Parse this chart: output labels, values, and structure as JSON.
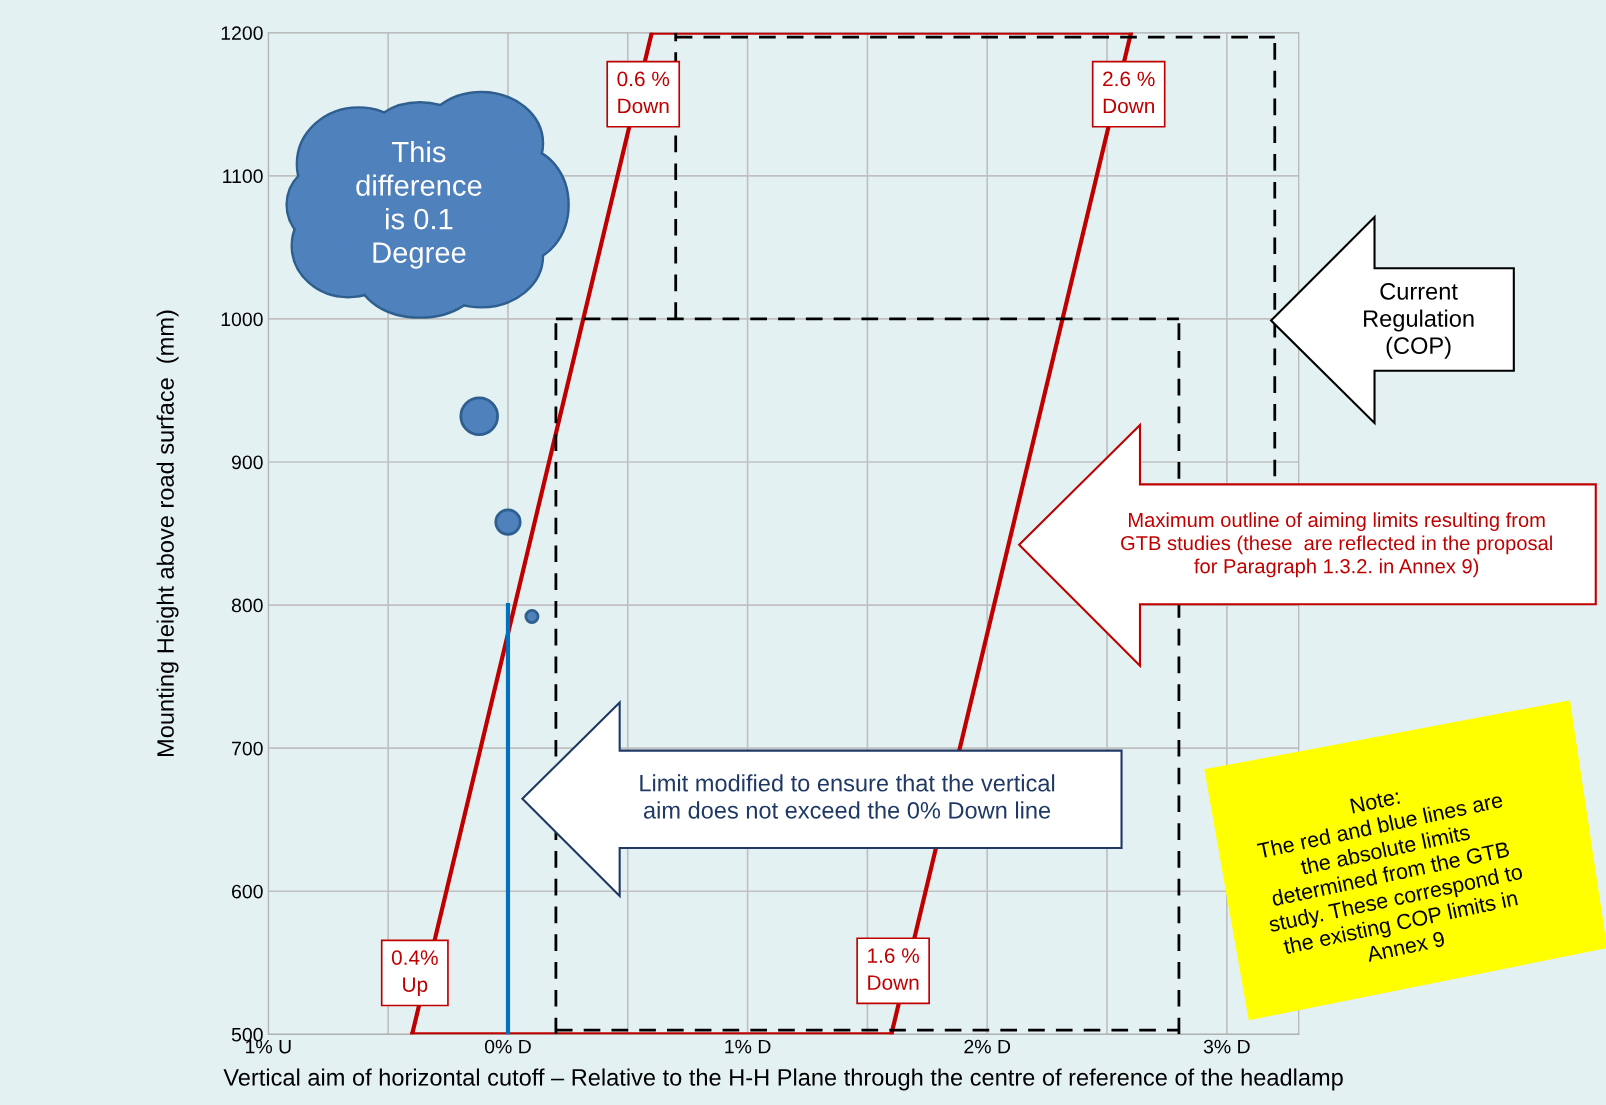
{
  "chart_data": {
    "type": "line",
    "xlabel": "Vertical aim of horizontal cutoff – Relative to the H-H Plane through the centre of reference of the headlamp",
    "ylabel": "Mounting Height above road surface  (mm)",
    "xlim": [
      -1,
      3.3
    ],
    "xticks": [
      {
        "value": -1,
        "label": "1% U"
      },
      {
        "value": -0.5,
        "label": null
      },
      {
        "value": 0,
        "label": "0% D"
      },
      {
        "value": 0.5,
        "label": null
      },
      {
        "value": 1,
        "label": "1% D"
      },
      {
        "value": 1.5,
        "label": null
      },
      {
        "value": 2,
        "label": "2% D"
      },
      {
        "value": 2.5,
        "label": null
      },
      {
        "value": 3,
        "label": "3% D"
      }
    ],
    "ylim": [
      500,
      1200
    ],
    "yticks": [
      500,
      600,
      700,
      800,
      900,
      1000,
      1100,
      1200
    ],
    "grid": true,
    "series": [
      {
        "color": "#c00000",
        "line_style": "solid",
        "x": [
          -0.4,
          0.6
        ],
        "values": [
          500,
          1200
        ]
      },
      {
        "color": "#c00000",
        "line_style": "solid",
        "x": [
          0.6,
          2.6
        ],
        "values": [
          1200,
          1200
        ]
      },
      {
        "color": "#c00000",
        "line_style": "solid",
        "x": [
          1.6,
          2.6
        ],
        "values": [
          500,
          1200
        ]
      },
      {
        "color": "#c00000",
        "line_style": "solid",
        "x": [
          -0.4,
          1.6
        ],
        "values": [
          500,
          500
        ]
      },
      {
        "color": "#000000",
        "line_style": "dashed",
        "x": [
          0.2,
          0.2
        ],
        "values": [
          500,
          1000
        ]
      },
      {
        "color": "#000000",
        "line_style": "dashed",
        "x": [
          0.2,
          2.8
        ],
        "values": [
          1000,
          1000
        ]
      },
      {
        "color": "#000000",
        "line_style": "dashed",
        "x": [
          2.8,
          2.8
        ],
        "values": [
          500,
          1000
        ]
      },
      {
        "color": "#000000",
        "line_style": "dashed",
        "x": [
          0.2,
          2.8
        ],
        "values": [
          503,
          503
        ]
      },
      {
        "color": "#000000",
        "line_style": "dashed",
        "x": [
          0.7,
          0.7
        ],
        "values": [
          1000,
          1200
        ]
      },
      {
        "color": "#000000",
        "line_style": "dashed",
        "x": [
          0.7,
          3.2
        ],
        "values": [
          1197,
          1197
        ]
      },
      {
        "color": "#000000",
        "line_style": "dashed",
        "x": [
          3.2,
          3.2
        ],
        "values": [
          890,
          1197
        ]
      },
      {
        "color": "#0070c0",
        "line_style": "solid",
        "x": [
          0,
          0
        ],
        "values": [
          500,
          800
        ]
      },
      {
        "type": "bubble",
        "color": "#4f81bd",
        "x": [
          -0.12,
          0,
          0.1
        ],
        "values": [
          932,
          858,
          792
        ],
        "sizes": [
          1,
          0.44,
          0.11
        ]
      }
    ],
    "annotations": [
      "0.6 %\nDown",
      "2.6 %\nDown",
      "0.4%\nUp",
      "1.6 %\nDown",
      "This\ndifference\nis 0.1\nDegree",
      "Current\nRegulation\n(COP)",
      "Maximum outline of aiming limits resulting from\nGTB studies (these  are reflected in the proposal\nfor Paragraph 1.3.2. in Annex 9)",
      "Limit modified to ensure that the vertical\naim does not exceed the 0% Down line",
      "Note:\nThe red and blue lines are\nthe absolute limits\ndetermined from the GTB\nstudy. These correspond to\nthe existing COP limits in\nAnnex 9"
    ]
  }
}
